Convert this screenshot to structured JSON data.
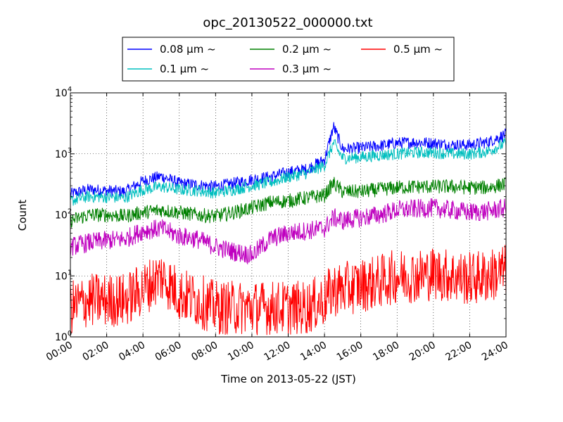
{
  "chart_data": {
    "type": "line",
    "title": "opc_20130522_000000.txt",
    "xlabel": "Time on 2013-05-22 (JST)",
    "ylabel": "Count",
    "y_scale": "log",
    "ylim": [
      1,
      10000
    ],
    "xlim": [
      "00:00",
      "24:00"
    ],
    "grid": true,
    "legend_position": "top, outside plot",
    "x_ticks": [
      "00:00",
      "02:00",
      "04:00",
      "06:00",
      "08:00",
      "10:00",
      "12:00",
      "14:00",
      "16:00",
      "18:00",
      "20:00",
      "22:00",
      "24:00"
    ],
    "y_ticks": [
      {
        "base": "10",
        "exp": "0"
      },
      {
        "base": "10",
        "exp": "1"
      },
      {
        "base": "10",
        "exp": "2"
      },
      {
        "base": "10",
        "exp": "3"
      },
      {
        "base": "10",
        "exp": "4"
      }
    ],
    "x": [
      "00:00",
      "01:00",
      "02:00",
      "03:00",
      "04:00",
      "05:00",
      "06:00",
      "07:00",
      "08:00",
      "09:00",
      "10:00",
      "11:00",
      "12:00",
      "13:00",
      "14:00",
      "14:30",
      "15:00",
      "16:00",
      "17:00",
      "18:00",
      "19:00",
      "20:00",
      "21:00",
      "22:00",
      "23:00",
      "24:00"
    ],
    "series": [
      {
        "name": "0.08 μm ~",
        "color": "#0000ff",
        "values": [
          220,
          260,
          250,
          240,
          360,
          430,
          330,
          310,
          290,
          330,
          380,
          420,
          500,
          560,
          800,
          2800,
          1200,
          1250,
          1350,
          1500,
          1550,
          1500,
          1400,
          1400,
          1550,
          2100
        ]
      },
      {
        "name": "0.1 μm ~",
        "color": "#00bfbf",
        "values": [
          170,
          200,
          195,
          190,
          260,
          290,
          260,
          250,
          230,
          260,
          300,
          340,
          420,
          480,
          650,
          1500,
          850,
          880,
          950,
          1000,
          1050,
          1050,
          1000,
          1000,
          1100,
          1500
        ]
      },
      {
        "name": "0.2 μm ~",
        "color": "#008000",
        "values": [
          80,
          100,
          100,
          95,
          110,
          120,
          110,
          100,
          95,
          110,
          130,
          160,
          170,
          190,
          210,
          330,
          240,
          240,
          260,
          280,
          290,
          290,
          290,
          280,
          280,
          320
        ]
      },
      {
        "name": "0.3 μm ~",
        "color": "#bf00bf",
        "values": [
          30,
          35,
          38,
          40,
          55,
          60,
          45,
          40,
          30,
          25,
          22,
          40,
          50,
          55,
          60,
          90,
          80,
          90,
          100,
          120,
          125,
          130,
          120,
          110,
          115,
          130
        ]
      },
      {
        "name": "0.5 μm ~",
        "color": "#ff0000",
        "values": [
          3,
          4,
          4,
          4,
          6,
          10,
          5,
          4,
          3,
          3,
          3,
          3,
          3,
          3,
          4,
          6,
          6,
          7,
          8,
          10,
          10,
          11,
          10,
          9,
          10,
          12
        ]
      }
    ]
  }
}
